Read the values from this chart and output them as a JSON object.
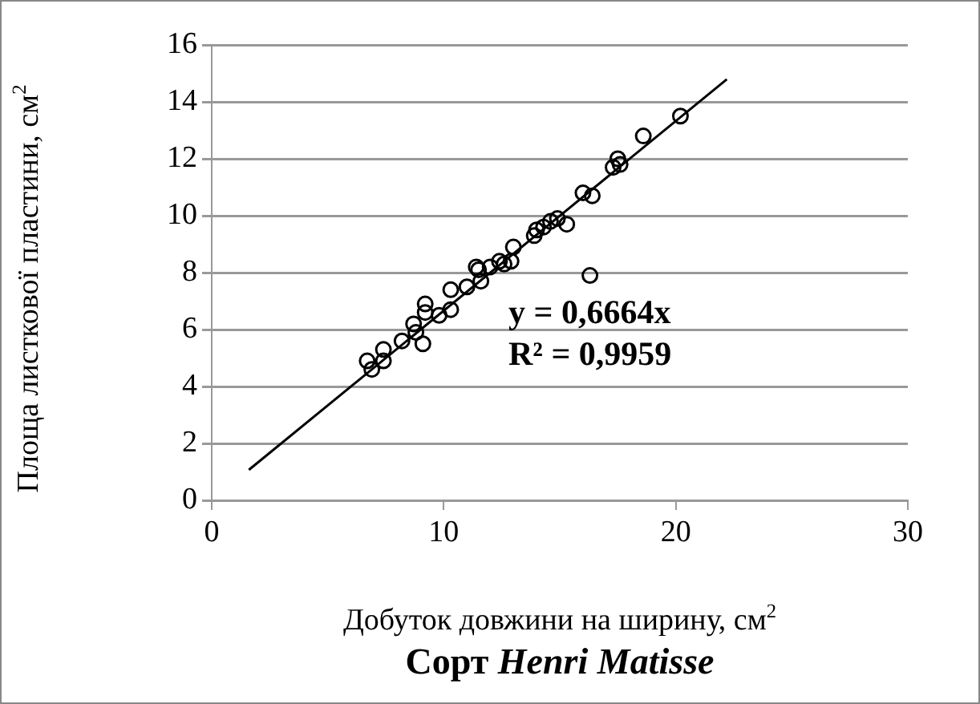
{
  "chart_data": {
    "type": "scatter",
    "title": "Сорт Henri Matisse",
    "xlabel": "Добуток довжини на ширину, см$^{2}$",
    "ylabel": "Площа листкової пластини, см$^{2}$",
    "annotations": [
      "y = 0,6664x",
      "R² = 0,9959"
    ],
    "x": [
      6.7,
      6.9,
      7.4,
      7.4,
      8.2,
      8.7,
      8.8,
      9.1,
      9.2,
      9.2,
      9.8,
      10.3,
      10.3,
      11,
      11.4,
      11.5,
      11.6,
      12,
      12.4,
      12.6,
      12.9,
      13,
      13.9,
      14,
      14.3,
      14.6,
      14.9,
      15.3,
      16,
      16.4,
      16.3,
      17.3,
      17.5,
      17.6,
      18.6,
      20.2
    ],
    "series": [
      {
        "color": "#000000",
        "marker": "circle",
        "values": [
          4.9,
          4.6,
          5.3,
          4.9,
          5.6,
          6.2,
          5.9,
          5.5,
          6.9,
          6.6,
          6.5,
          6.7,
          7.4,
          7.5,
          8.2,
          8.1,
          7.7,
          8.2,
          8.4,
          8.3,
          8.4,
          8.9,
          9.3,
          9.5,
          9.6,
          9.8,
          9.9,
          9.7,
          10.8,
          10.7,
          7.9,
          11.7,
          12.0,
          11.8,
          12.8,
          13.5
        ]
      },
      {
        "type": "line",
        "color": "#000000",
        "marker": "none",
        "x": [
          1.6,
          22.2
        ],
        "values": [
          1.07,
          14.79
        ]
      }
    ],
    "xlim": [
      0,
      30
    ],
    "xticks": [
      0,
      10,
      20,
      30
    ],
    "ylim": [
      0,
      16
    ],
    "yticks": [
      0,
      2,
      4,
      6,
      8,
      10,
      12,
      14,
      16
    ],
    "grid": "y",
    "legend": false
  }
}
